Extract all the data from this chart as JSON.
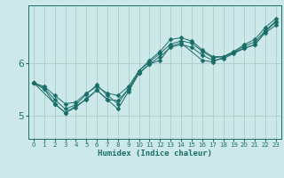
{
  "title": "",
  "xlabel": "Humidex (Indice chaleur)",
  "background_color": "#cce8e8",
  "grid_color": "#b0c8c8",
  "line_color": "#1a6e6a",
  "xlim": [
    -0.5,
    23.5
  ],
  "ylim": [
    4.55,
    7.1
  ],
  "xticks": [
    0,
    1,
    2,
    3,
    4,
    5,
    6,
    7,
    8,
    9,
    10,
    11,
    12,
    13,
    14,
    15,
    16,
    17,
    18,
    19,
    20,
    21,
    22,
    23
  ],
  "yticks": [
    5,
    6
  ],
  "series": [
    {
      "x": [
        0,
        1,
        2,
        3,
        4,
        5,
        6,
        7,
        8,
        9,
        10,
        11,
        12,
        13,
        14,
        15,
        16,
        17,
        18,
        19,
        20,
        21,
        22,
        23
      ],
      "y": [
        5.62,
        5.5,
        5.22,
        5.05,
        5.15,
        5.32,
        5.48,
        5.3,
        5.28,
        5.5,
        5.8,
        5.98,
        6.12,
        6.3,
        6.35,
        6.3,
        6.15,
        6.05,
        6.08,
        6.18,
        6.28,
        6.35,
        6.58,
        6.72
      ],
      "marker": "D",
      "markersize": 2.5
    },
    {
      "x": [
        0,
        1,
        2,
        3,
        4,
        5,
        6,
        7,
        8,
        9,
        10,
        11,
        12,
        13,
        14,
        15,
        16,
        17,
        18,
        19,
        20,
        21,
        22,
        23
      ],
      "y": [
        5.62,
        5.52,
        5.3,
        5.12,
        5.2,
        5.4,
        5.58,
        5.38,
        5.22,
        5.5,
        5.85,
        6.05,
        6.22,
        6.45,
        6.48,
        6.42,
        6.25,
        6.12,
        6.12,
        6.22,
        6.35,
        6.45,
        6.68,
        6.85
      ],
      "marker": "D",
      "markersize": 2.5
    },
    {
      "x": [
        0,
        2,
        3,
        5,
        6,
        7,
        8,
        9,
        10,
        11,
        12,
        13,
        14,
        16,
        17,
        20,
        21,
        22,
        23
      ],
      "y": [
        5.62,
        5.22,
        5.05,
        5.3,
        5.48,
        5.3,
        5.12,
        5.45,
        5.8,
        5.98,
        6.05,
        6.32,
        6.38,
        6.05,
        6.02,
        6.28,
        6.35,
        6.6,
        6.78
      ],
      "marker": "D",
      "markersize": 2.5
    },
    {
      "x": [
        0,
        1,
        2,
        3,
        4,
        5,
        6,
        7,
        8,
        9,
        10,
        11,
        12,
        13,
        14,
        15,
        16,
        17,
        18,
        19,
        20,
        21,
        22,
        23
      ],
      "y": [
        5.62,
        5.55,
        5.38,
        5.22,
        5.25,
        5.42,
        5.55,
        5.42,
        5.38,
        5.55,
        5.85,
        6.02,
        6.18,
        6.36,
        6.42,
        6.38,
        6.22,
        6.1,
        6.12,
        6.2,
        6.32,
        6.4,
        6.62,
        6.8
      ],
      "marker": "D",
      "markersize": 2.5
    }
  ]
}
